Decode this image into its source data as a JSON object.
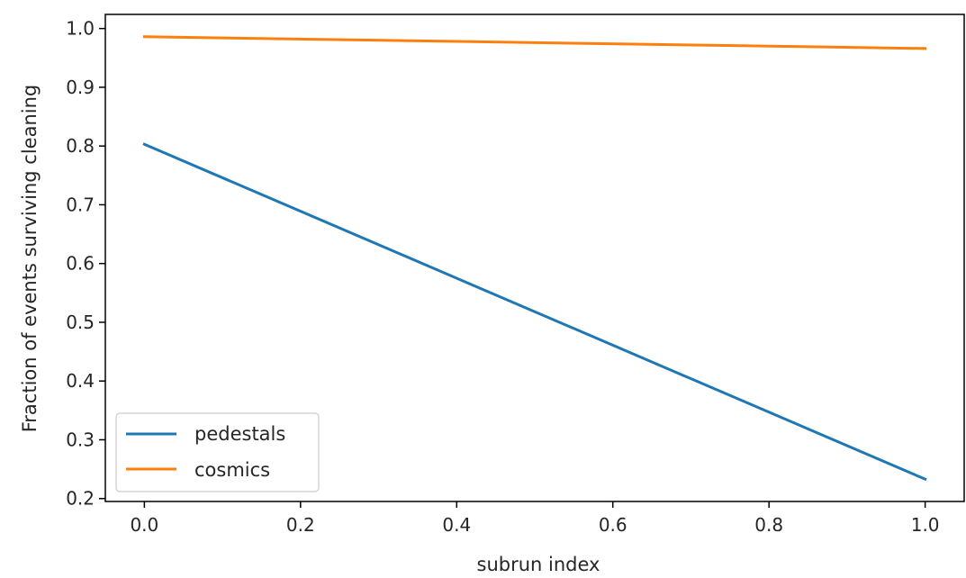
{
  "chart_data": {
    "type": "line",
    "title": "",
    "xlabel": "subrun index",
    "ylabel": "Fraction of events surviving cleaning",
    "xlim": [
      -0.05,
      1.05
    ],
    "ylim": [
      0.195,
      1.024
    ],
    "xticks": [
      0.0,
      0.2,
      0.4,
      0.6,
      0.8,
      1.0
    ],
    "xtick_labels": [
      "0.0",
      "0.2",
      "0.4",
      "0.6",
      "0.8",
      "1.0"
    ],
    "yticks": [
      0.2,
      0.3,
      0.4,
      0.5,
      0.6,
      0.7,
      0.8,
      0.9,
      1.0
    ],
    "ytick_labels": [
      "0.2",
      "0.3",
      "0.4",
      "0.5",
      "0.6",
      "0.7",
      "0.8",
      "0.9",
      "1.0"
    ],
    "grid": false,
    "legend_position": "lower-left",
    "series": [
      {
        "name": "pedestals",
        "color": "#1f77b4",
        "x": [
          0.0,
          1.0
        ],
        "y": [
          0.803,
          0.233
        ]
      },
      {
        "name": "cosmics",
        "color": "#ff7f0e",
        "x": [
          0.0,
          1.0
        ],
        "y": [
          0.986,
          0.966
        ]
      }
    ]
  }
}
